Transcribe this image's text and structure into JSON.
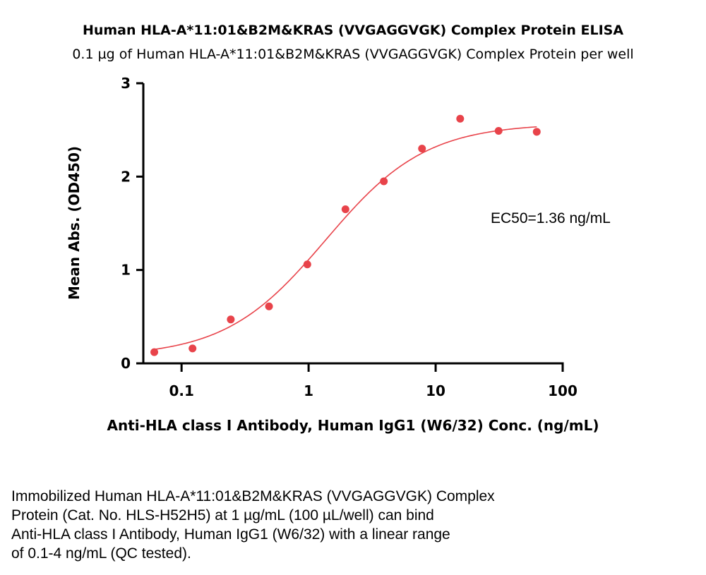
{
  "chart_data": {
    "type": "scatter",
    "title": "Human HLA-A*11:01&B2M&KRAS (VVGAGGVGK) Complex Protein ELISA",
    "subtitle": "0.1 µg of Human HLA-A*11:01&B2M&KRAS (VVGAGGVGK) Complex Protein per well",
    "xlabel": "Anti-HLA class I Antibody, Human IgG1 (W6/32) Conc. (ng/mL)",
    "ylabel": "Mean Abs. (OD450)",
    "x_scale": "log",
    "xlim": [
      0.05,
      100
    ],
    "ylim": [
      0,
      3
    ],
    "x_ticks": [
      0.1,
      1,
      10,
      100
    ],
    "x_tick_labels": [
      "0.1",
      "1",
      "10",
      "100"
    ],
    "y_ticks": [
      0,
      1,
      2,
      3
    ],
    "y_tick_labels": [
      "0",
      "1",
      "2",
      "3"
    ],
    "grid": false,
    "legend": "none",
    "color": "#e8434a",
    "x": [
      0.061,
      0.122,
      0.244,
      0.488,
      0.977,
      1.95,
      3.91,
      7.81,
      15.6,
      31.3,
      62.5
    ],
    "y": [
      0.12,
      0.16,
      0.47,
      0.61,
      1.06,
      1.65,
      1.95,
      2.3,
      2.62,
      2.49,
      2.48
    ],
    "fit_curve": {
      "model": "4PL",
      "bottom": 0.07,
      "top": 2.57,
      "ec50": 1.36,
      "hill": 1.1
    },
    "annotation": "EC50=1.36 ng/mL"
  },
  "caption_lines": [
    "Immobilized Human HLA-A*11:01&B2M&KRAS (VVGAGGVGK) Complex",
    "Protein (Cat. No. HLS-H52H5) at 1 µg/mL (100 µL/well) can bind",
    "Anti-HLA class I Antibody, Human IgG1 (W6/32) with a linear range",
    "of 0.1-4 ng/mL (QC tested)."
  ]
}
